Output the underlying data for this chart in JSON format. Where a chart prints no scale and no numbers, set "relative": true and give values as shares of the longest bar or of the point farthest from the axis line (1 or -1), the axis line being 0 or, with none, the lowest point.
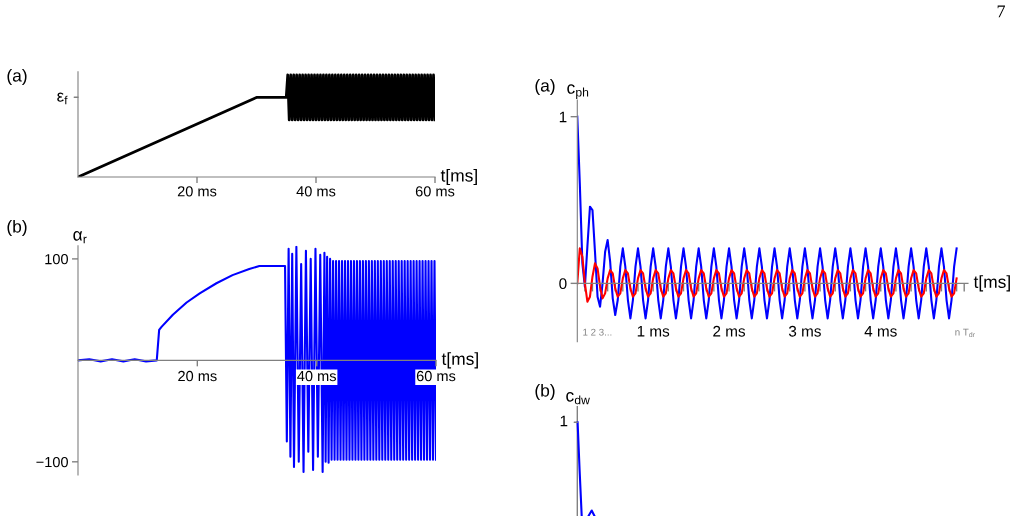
{
  "chart_data": [
    {
      "type": "line",
      "title": "(a)",
      "xlabel": "t[ms]",
      "relative": true,
      "annotations": [
        "7",
        "ε$_{f}$"
      ],
      "xlim": [
        0,
        60
      ],
      "xticks": [
        {
          "value": 20,
          "label": "20 ms"
        },
        {
          "value": 40,
          "label": "40 ms"
        },
        {
          "value": 60,
          "label": "60 ms"
        }
      ],
      "series": [
        {
          "color": "#000000",
          "x": [
            0,
            30,
            35,
            35.25,
            35.5,
            35.75,
            36,
            36.25,
            36.5,
            36.75,
            37,
            37.25,
            37.5,
            37.75,
            38,
            38.25,
            38.5,
            38.75,
            39,
            39.25,
            39.5,
            39.75,
            40,
            40.25,
            40.5,
            40.75,
            41,
            41.25,
            41.5,
            41.75,
            42,
            42.25,
            42.5,
            42.75,
            43,
            43.25,
            43.5,
            43.75,
            44,
            44.25,
            44.5,
            44.75,
            45,
            45.25,
            45.5,
            45.75,
            46,
            46.25,
            46.5,
            46.75,
            47,
            47.25,
            47.5,
            47.75,
            48,
            48.25,
            48.5,
            48.75,
            49,
            49.25,
            49.5,
            49.75,
            50,
            50.25,
            50.5,
            50.75,
            51,
            51.25,
            51.5,
            51.75,
            52,
            52.25,
            52.5,
            52.75,
            53,
            53.25,
            53.5,
            53.75,
            54,
            54.25,
            54.5,
            54.75,
            55,
            55.25,
            55.5,
            55.75,
            56,
            56.25,
            56.5,
            56.75,
            57,
            57.25,
            57.5,
            57.75,
            58,
            58.25,
            58.5,
            58.75,
            59,
            59.25,
            59.5,
            59.75,
            60
          ],
          "values": [
            0,
            0.78,
            0.78,
            1,
            0.56,
            1,
            0.56,
            1,
            0.56,
            1,
            0.56,
            1,
            0.56,
            1,
            0.56,
            1,
            0.56,
            1,
            0.56,
            1,
            0.56,
            1,
            0.56,
            1,
            0.56,
            1,
            0.56,
            1,
            0.56,
            1,
            0.56,
            1,
            0.56,
            1,
            0.56,
            1,
            0.56,
            1,
            0.56,
            1,
            0.56,
            1,
            0.56,
            1,
            0.56,
            1,
            0.56,
            1,
            0.56,
            1,
            0.56,
            1,
            0.56,
            1,
            0.56,
            1,
            0.56,
            1,
            0.56,
            1,
            0.56,
            1,
            0.56,
            1,
            0.56,
            1,
            0.56,
            1,
            0.56,
            1,
            0.56,
            1,
            0.56,
            1,
            0.56,
            1,
            0.56,
            1,
            0.56,
            1,
            0.56,
            1,
            0.56,
            1,
            0.56,
            1,
            0.56,
            1,
            0.56,
            1,
            0.56,
            1,
            0.56,
            1,
            0.56,
            1,
            0.56,
            1,
            0.56,
            1,
            0.56,
            1,
            0.56
          ]
        }
      ]
    },
    {
      "type": "line",
      "title": "(b)",
      "xlabel": "t[ms]",
      "ylabel": "α$_{r}$",
      "xlim": [
        0,
        60
      ],
      "xticks": [
        {
          "value": 20,
          "label": "20 ms"
        },
        {
          "value": 40,
          "label": "40 ms"
        },
        {
          "value": 60,
          "label": "60 ms"
        }
      ],
      "ylim": [
        -113,
        113
      ],
      "yticks": [
        100,
        {
          "value": -100,
          "label": "−100"
        }
      ],
      "series": [
        {
          "color": "#0000ff",
          "x": [
            0,
            1.9,
            3.8,
            5.7,
            7.6,
            9.5,
            11.4,
            13.2,
            13.6,
            14,
            15.9,
            18.2,
            20.4,
            23.2,
            25.9,
            28.7,
            30.4,
            34.7,
            35,
            35.3,
            35.6,
            35.9,
            36.2,
            36.6,
            37,
            37.4,
            37.8,
            38.2,
            38.6,
            39,
            39.4,
            39.8,
            40.2,
            40.6,
            41,
            41.3,
            41.5,
            41.75,
            42,
            42.25,
            42.5,
            42.75,
            43,
            43.25,
            43.5,
            43.75,
            44,
            44.25,
            44.5,
            44.75,
            45,
            45.25,
            45.5,
            45.75,
            46,
            46.25,
            46.5,
            46.75,
            47,
            47.25,
            47.5,
            47.75,
            48,
            48.25,
            48.5,
            48.75,
            49,
            49.25,
            49.5,
            49.75,
            50,
            50.25,
            50.5,
            50.75,
            51,
            51.25,
            51.5,
            51.75,
            52,
            52.25,
            52.5,
            52.75,
            53,
            53.25,
            53.5,
            53.75,
            54,
            54.25,
            54.5,
            54.75,
            55,
            55.25,
            55.5,
            55.75,
            56,
            56.25,
            56.5,
            56.75,
            57,
            57.25,
            57.5,
            57.75,
            58,
            58.25,
            58.5,
            58.75,
            59,
            59.25,
            59.5,
            59.75,
            60
          ],
          "values": [
            0,
            1,
            -1,
            1,
            -1,
            1,
            -1,
            0,
            30,
            33,
            45,
            57,
            66,
            76,
            84,
            90,
            93,
            93,
            -80,
            110,
            -95,
            105,
            -105,
            112,
            -100,
            95,
            -110,
            108,
            -90,
            100,
            -108,
            110,
            -95,
            104,
            -110,
            106,
            -100,
            102,
            -101,
            100,
            -98,
            98,
            -98,
            98,
            -98,
            98,
            -98,
            98,
            -98,
            98,
            -98,
            98,
            -98,
            98,
            -98,
            98,
            -98,
            98,
            -98,
            98,
            -98,
            98,
            -98,
            98,
            -98,
            98,
            -98,
            98,
            -98,
            98,
            -98,
            98,
            -98,
            98,
            -98,
            98,
            -98,
            98,
            -98,
            98,
            -98,
            98,
            -98,
            98,
            -98,
            98,
            -98,
            98,
            -98,
            98,
            -98,
            98,
            -98,
            98,
            -98,
            98,
            -98,
            98,
            -98,
            98,
            -98,
            98,
            -98,
            98,
            -98,
            98,
            -98,
            98,
            -98,
            98,
            -98
          ]
        }
      ]
    },
    {
      "type": "line",
      "title": "(a)",
      "xlabel": "t[ms]",
      "ylabel": "c$_{ph}$",
      "annotations": [
        "1 2 3...",
        "n T$_{dr}$"
      ],
      "xlim": [
        0,
        5.15
      ],
      "xticks": [
        {
          "value": 0.1,
          "label": null
        },
        {
          "value": 0.2,
          "label": null
        },
        {
          "value": 0.3,
          "label": null
        },
        {
          "value": 0.4,
          "label": null
        },
        {
          "value": 0.5,
          "label": null
        },
        {
          "value": 0.6,
          "label": null
        },
        {
          "value": 0.7,
          "label": null
        },
        {
          "value": 0.8,
          "label": null
        },
        {
          "value": 0.9,
          "label": null
        },
        {
          "value": 1,
          "label": "1 ms"
        },
        {
          "value": 1.1,
          "label": null
        },
        {
          "value": 1.2,
          "label": null
        },
        {
          "value": 1.3,
          "label": null
        },
        {
          "value": 1.4,
          "label": null
        },
        {
          "value": 1.5,
          "label": null
        },
        {
          "value": 1.6,
          "label": null
        },
        {
          "value": 1.7,
          "label": null
        },
        {
          "value": 1.8,
          "label": null
        },
        {
          "value": 1.9,
          "label": null
        },
        {
          "value": 2,
          "label": "2 ms"
        },
        {
          "value": 2.1,
          "label": null
        },
        {
          "value": 2.2,
          "label": null
        },
        {
          "value": 2.3,
          "label": null
        },
        {
          "value": 2.4,
          "label": null
        },
        {
          "value": 2.5,
          "label": null
        },
        {
          "value": 2.6,
          "label": null
        },
        {
          "value": 2.7,
          "label": null
        },
        {
          "value": 2.8,
          "label": null
        },
        {
          "value": 2.9,
          "label": null
        },
        {
          "value": 3,
          "label": "3 ms"
        },
        {
          "value": 3.1,
          "label": null
        },
        {
          "value": 3.2,
          "label": null
        },
        {
          "value": 3.3,
          "label": null
        },
        {
          "value": 3.4,
          "label": null
        },
        {
          "value": 3.5,
          "label": null
        },
        {
          "value": 3.6,
          "label": null
        },
        {
          "value": 3.7,
          "label": null
        },
        {
          "value": 3.8,
          "label": null
        },
        {
          "value": 3.9,
          "label": null
        },
        {
          "value": 4,
          "label": "4 ms"
        },
        {
          "value": 4.1,
          "label": null
        },
        {
          "value": 4.2,
          "label": null
        },
        {
          "value": 4.3,
          "label": null
        },
        {
          "value": 4.4,
          "label": null
        },
        {
          "value": 4.5,
          "label": null
        },
        {
          "value": 4.6,
          "label": null
        },
        {
          "value": 4.7,
          "label": null
        },
        {
          "value": 4.8,
          "label": null
        },
        {
          "value": 4.9,
          "label": null
        },
        {
          "value": 5,
          "label": null
        },
        {
          "value": 5.1,
          "label": null
        }
      ],
      "ylim": [
        -0.35,
        1.1
      ],
      "yticks": [
        0,
        1
      ],
      "x": [
        0,
        0.033,
        0.067,
        0.1,
        0.133,
        0.167,
        0.2,
        0.233,
        0.267,
        0.3,
        0.333,
        0.367,
        0.4,
        0.433,
        0.467,
        0.5,
        0.533,
        0.567,
        0.6,
        0.633,
        0.667,
        0.7,
        0.733,
        0.767,
        0.8,
        0.833,
        0.867,
        0.9,
        0.933,
        0.967,
        1,
        1.033,
        1.067,
        1.1,
        1.133,
        1.167,
        1.2,
        1.233,
        1.267,
        1.3,
        1.333,
        1.367,
        1.4,
        1.433,
        1.467,
        1.5,
        1.533,
        1.567,
        1.6,
        1.633,
        1.667,
        1.7,
        1.733,
        1.767,
        1.8,
        1.833,
        1.867,
        1.9,
        1.933,
        1.967,
        2,
        2.033,
        2.067,
        2.1,
        2.133,
        2.167,
        2.2,
        2.233,
        2.267,
        2.3,
        2.333,
        2.367,
        2.4,
        2.433,
        2.467,
        2.5,
        2.533,
        2.567,
        2.6,
        2.633,
        2.667,
        2.7,
        2.733,
        2.767,
        2.8,
        2.833,
        2.867,
        2.9,
        2.933,
        2.967,
        3,
        3.033,
        3.067,
        3.1,
        3.133,
        3.167,
        3.2,
        3.233,
        3.267,
        3.3,
        3.333,
        3.367,
        3.4,
        3.433,
        3.467,
        3.5,
        3.533,
        3.567,
        3.6,
        3.633,
        3.667,
        3.7,
        3.733,
        3.767,
        3.8,
        3.833,
        3.867,
        3.9,
        3.933,
        3.967,
        4,
        4.033,
        4.067,
        4.1,
        4.133,
        4.167,
        4.2,
        4.233,
        4.267,
        4.3,
        4.333,
        4.367,
        4.4,
        4.433,
        4.467,
        4.5,
        4.533,
        4.567,
        4.6,
        4.633,
        4.667,
        4.7,
        4.733,
        4.767,
        4.8,
        4.833,
        4.867,
        4.9,
        4.933,
        4.967,
        5
      ],
      "series": [
        {
          "color": "#0000ff",
          "values": [
            1,
            0.6,
            0.12,
            -0.02,
            0.22,
            0.46,
            0.44,
            0.19,
            -0.08,
            -0.14,
            0,
            0.19,
            0.26,
            0.13,
            -0.09,
            -0.19,
            -0.1,
            0.1,
            0.21,
            0.1,
            -0.1,
            -0.21,
            -0.1,
            0.1,
            0.21,
            0.1,
            -0.1,
            -0.21,
            -0.1,
            0.1,
            0.21,
            0.1,
            -0.1,
            -0.21,
            -0.1,
            0.1,
            0.21,
            0.1,
            -0.1,
            -0.21,
            -0.1,
            0.1,
            0.21,
            0.1,
            -0.1,
            -0.21,
            -0.1,
            0.1,
            0.21,
            0.1,
            -0.1,
            -0.21,
            -0.1,
            0.1,
            0.21,
            0.1,
            -0.1,
            -0.21,
            -0.1,
            0.1,
            0.21,
            0.1,
            -0.1,
            -0.21,
            -0.1,
            0.1,
            0.21,
            0.1,
            -0.1,
            -0.21,
            -0.1,
            0.1,
            0.21,
            0.1,
            -0.1,
            -0.21,
            -0.1,
            0.1,
            0.21,
            0.1,
            -0.1,
            -0.21,
            -0.1,
            0.1,
            0.21,
            0.1,
            -0.1,
            -0.21,
            -0.1,
            0.1,
            0.21,
            0.1,
            -0.1,
            -0.21,
            -0.1,
            0.1,
            0.21,
            0.1,
            -0.1,
            -0.21,
            -0.1,
            0.1,
            0.21,
            0.1,
            -0.1,
            -0.21,
            -0.1,
            0.1,
            0.21,
            0.1,
            -0.1,
            -0.21,
            -0.1,
            0.1,
            0.21,
            0.1,
            -0.1,
            -0.21,
            -0.1,
            0.1,
            0.21,
            0.1,
            -0.1,
            -0.21,
            -0.1,
            0.1,
            0.21,
            0.1,
            -0.1,
            -0.21,
            -0.1,
            0.1,
            0.21,
            0.1,
            -0.1,
            -0.21,
            -0.1,
            0.1,
            0.21,
            0.1,
            -0.1,
            -0.21,
            -0.1,
            0.1,
            0.21,
            0.1,
            -0.1,
            -0.21,
            -0.1,
            0.1,
            0.21
          ]
        },
        {
          "color": "#ff0000",
          "values": [
            0,
            0.21,
            0.16,
            0,
            -0.11,
            -0.08,
            0.04,
            0.12,
            0.09,
            -0.02,
            -0.09,
            -0.06,
            0.03,
            0.08,
            0.06,
            -0.03,
            -0.08,
            -0.06,
            0.03,
            0.08,
            0.06,
            -0.03,
            -0.08,
            -0.06,
            0.03,
            0.08,
            0.06,
            -0.03,
            -0.08,
            -0.06,
            0.03,
            0.08,
            0.06,
            -0.03,
            -0.08,
            -0.06,
            0.03,
            0.08,
            0.06,
            -0.03,
            -0.08,
            -0.06,
            0.03,
            0.08,
            0.06,
            -0.03,
            -0.08,
            -0.06,
            0.03,
            0.08,
            0.06,
            -0.03,
            -0.08,
            -0.06,
            0.03,
            0.08,
            0.06,
            -0.03,
            -0.08,
            -0.06,
            0.03,
            0.08,
            0.06,
            -0.03,
            -0.08,
            -0.06,
            0.03,
            0.08,
            0.06,
            -0.03,
            -0.08,
            -0.06,
            0.03,
            0.08,
            0.06,
            -0.03,
            -0.08,
            -0.06,
            0.03,
            0.08,
            0.06,
            -0.03,
            -0.08,
            -0.06,
            0.03,
            0.08,
            0.06,
            -0.03,
            -0.08,
            -0.06,
            0.03,
            0.08,
            0.06,
            -0.03,
            -0.08,
            -0.06,
            0.03,
            0.08,
            0.06,
            -0.03,
            -0.08,
            -0.06,
            0.03,
            0.08,
            0.06,
            -0.03,
            -0.08,
            -0.06,
            0.03,
            0.08,
            0.06,
            -0.03,
            -0.08,
            -0.06,
            0.03,
            0.08,
            0.06,
            -0.03,
            -0.08,
            -0.06,
            0.03,
            0.08,
            0.06,
            -0.03,
            -0.08,
            -0.06,
            0.03,
            0.08,
            0.06,
            -0.03,
            -0.08,
            -0.06,
            0.03,
            0.08,
            0.06,
            -0.03,
            -0.08,
            -0.06,
            0.03,
            0.08,
            0.06,
            -0.03,
            -0.08,
            -0.06,
            0.03,
            0.08,
            0.06,
            -0.03,
            -0.08,
            -0.06,
            0.03
          ]
        }
      ]
    },
    {
      "type": "other",
      "title": "(b)",
      "ylabel": "c$_{dw}$",
      "annotations": [
        "1"
      ]
    }
  ]
}
